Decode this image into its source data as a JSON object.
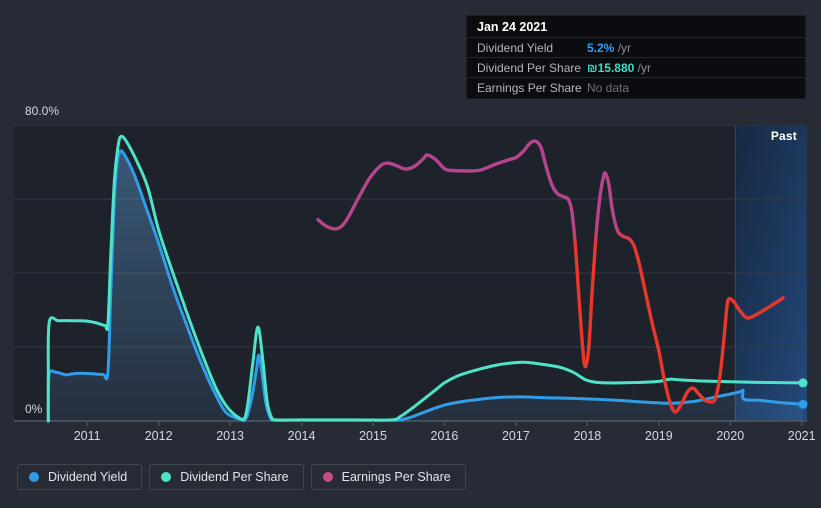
{
  "page": {
    "background": "#272b35"
  },
  "tooltip": {
    "date": "Jan 24 2021",
    "rows": [
      {
        "label": "Dividend Yield",
        "value": "5.2%",
        "suffix": " /yr",
        "color": "#2f9ff0",
        "no_data": false
      },
      {
        "label": "Dividend Per Share",
        "value": "₪15.880",
        "suffix": " /yr",
        "color": "#40ddc4",
        "no_data": false
      },
      {
        "label": "Earnings Per Share",
        "value": "No data",
        "suffix": "",
        "color": "#6d7379",
        "no_data": true
      }
    ]
  },
  "chart": {
    "y_top_label": "80.0%",
    "y_bottom_label": "0%",
    "past_label": "Past",
    "x_labels": [
      "2011",
      "2012",
      "2013",
      "2014",
      "2015",
      "2016",
      "2017",
      "2018",
      "2019",
      "2020",
      "2021"
    ]
  },
  "legend": [
    {
      "label": "Dividend Yield",
      "color": "#2f9de8"
    },
    {
      "label": "Dividend Per Share",
      "color": "#4ee3c8"
    },
    {
      "label": "Earnings Per Share",
      "color": "#c64a88"
    }
  ],
  "chart_data": {
    "type": "line",
    "title": "Dividend history with earnings per share",
    "ylabel": "%",
    "ylim": [
      0,
      80
    ],
    "grid_values": [
      80,
      60,
      40,
      20,
      0
    ],
    "x_ticks": [
      2011,
      2012,
      2013,
      2014,
      2015,
      2016,
      2017,
      2018,
      2019,
      2020,
      2021
    ],
    "x_range": [
      2010.0,
      2021.07
    ],
    "past_region": {
      "start_year": 2020.07,
      "end_year": 2021.07
    },
    "series": [
      {
        "name": "Dividend Yield",
        "color": "#2f9de8",
        "fill": true,
        "end_dot": true,
        "points": [
          [
            2010.455,
            0
          ],
          [
            2010.455,
            6
          ],
          [
            2010.47,
            12.9
          ],
          [
            2010.56,
            13.2
          ],
          [
            2010.7,
            12.5
          ],
          [
            2010.78,
            12.7
          ],
          [
            2010.9,
            12.9
          ],
          [
            2011.05,
            12.8
          ],
          [
            2011.22,
            12.6
          ],
          [
            2011.29,
            13.2
          ],
          [
            2011.33,
            35
          ],
          [
            2011.38,
            60
          ],
          [
            2011.42,
            70
          ],
          [
            2011.46,
            72.9
          ],
          [
            2011.52,
            72.0
          ],
          [
            2011.65,
            67
          ],
          [
            2011.8,
            59
          ],
          [
            2012.0,
            48
          ],
          [
            2012.2,
            36
          ],
          [
            2012.4,
            25.5
          ],
          [
            2012.6,
            15.5
          ],
          [
            2012.8,
            7
          ],
          [
            2012.95,
            2.2
          ],
          [
            2013.15,
            0.4
          ],
          [
            2013.22,
            0.6
          ],
          [
            2013.3,
            6
          ],
          [
            2013.37,
            14
          ],
          [
            2013.4,
            17.8
          ],
          [
            2013.44,
            14
          ],
          [
            2013.5,
            5
          ],
          [
            2013.56,
            1
          ],
          [
            2013.62,
            0.25
          ],
          [
            2013.9,
            0.25
          ],
          [
            2014.5,
            0.25
          ],
          [
            2015.3,
            0.25
          ],
          [
            2015.45,
            0.6
          ],
          [
            2015.6,
            1.5
          ],
          [
            2015.8,
            3
          ],
          [
            2016.0,
            4.3
          ],
          [
            2016.2,
            5.1
          ],
          [
            2016.5,
            5.9
          ],
          [
            2016.8,
            6.4
          ],
          [
            2017.1,
            6.5
          ],
          [
            2017.4,
            6.3
          ],
          [
            2017.8,
            6.1
          ],
          [
            2018.2,
            5.8
          ],
          [
            2018.5,
            5.5
          ],
          [
            2018.8,
            5.1
          ],
          [
            2019.0,
            4.9
          ],
          [
            2019.2,
            4.8
          ],
          [
            2019.5,
            5.3
          ],
          [
            2019.8,
            6.5
          ],
          [
            2020.0,
            7.3
          ],
          [
            2020.15,
            8.0
          ],
          [
            2020.18,
            8.2
          ],
          [
            2020.19,
            5.9
          ],
          [
            2020.4,
            5.6
          ],
          [
            2020.7,
            5.0
          ],
          [
            2021.02,
            4.5
          ]
        ]
      },
      {
        "name": "Dividend Per Share",
        "color": "#4ee3c8",
        "fill": false,
        "end_dot": true,
        "points": [
          [
            2010.455,
            0
          ],
          [
            2010.455,
            13
          ],
          [
            2010.47,
            26.8
          ],
          [
            2010.6,
            27.1
          ],
          [
            2010.8,
            27.1
          ],
          [
            2011.0,
            27.0
          ],
          [
            2011.15,
            26.4
          ],
          [
            2011.25,
            25.8
          ],
          [
            2011.29,
            26.3
          ],
          [
            2011.33,
            45
          ],
          [
            2011.38,
            65
          ],
          [
            2011.43,
            74
          ],
          [
            2011.47,
            76.9
          ],
          [
            2011.55,
            75.5
          ],
          [
            2011.7,
            70
          ],
          [
            2011.85,
            63
          ],
          [
            2012.0,
            51.6
          ],
          [
            2012.2,
            40
          ],
          [
            2012.4,
            29
          ],
          [
            2012.6,
            18.5
          ],
          [
            2012.8,
            9
          ],
          [
            2012.95,
            4
          ],
          [
            2013.1,
            1.2
          ],
          [
            2013.2,
            0.7
          ],
          [
            2013.25,
            5
          ],
          [
            2013.32,
            16
          ],
          [
            2013.39,
            25.4
          ],
          [
            2013.46,
            16
          ],
          [
            2013.52,
            5
          ],
          [
            2013.58,
            1
          ],
          [
            2013.64,
            0.3
          ],
          [
            2014.0,
            0.3
          ],
          [
            2014.7,
            0.3
          ],
          [
            2015.25,
            0.3
          ],
          [
            2015.38,
            1.2
          ],
          [
            2015.55,
            3.5
          ],
          [
            2015.75,
            6.5
          ],
          [
            2015.9,
            8.8
          ],
          [
            2016.0,
            10.3
          ],
          [
            2016.2,
            12.3
          ],
          [
            2016.45,
            13.8
          ],
          [
            2016.7,
            15.0
          ],
          [
            2016.9,
            15.6
          ],
          [
            2017.1,
            15.9
          ],
          [
            2017.3,
            15.5
          ],
          [
            2017.6,
            14.6
          ],
          [
            2017.8,
            13.2
          ],
          [
            2017.97,
            11.2
          ],
          [
            2018.1,
            10.5
          ],
          [
            2018.3,
            10.3
          ],
          [
            2018.7,
            10.4
          ],
          [
            2019.0,
            10.7
          ],
          [
            2019.15,
            11.3
          ],
          [
            2019.3,
            11.1
          ],
          [
            2019.6,
            10.8
          ],
          [
            2020.0,
            10.6
          ],
          [
            2020.5,
            10.4
          ],
          [
            2021.02,
            10.3
          ]
        ]
      },
      {
        "name": "Earnings Per Share",
        "color": "gradient-pink-red",
        "fill": false,
        "end_dot": false,
        "points": [
          [
            2014.23,
            54.4
          ],
          [
            2014.35,
            52.6
          ],
          [
            2014.5,
            52.0
          ],
          [
            2014.62,
            54.0
          ],
          [
            2014.78,
            59.7
          ],
          [
            2014.95,
            65.5
          ],
          [
            2015.1,
            68.9
          ],
          [
            2015.2,
            69.7
          ],
          [
            2015.33,
            69.0
          ],
          [
            2015.45,
            68.1
          ],
          [
            2015.58,
            68.8
          ],
          [
            2015.7,
            70.8
          ],
          [
            2015.76,
            71.9
          ],
          [
            2015.88,
            70.6
          ],
          [
            2016.0,
            68.2
          ],
          [
            2016.1,
            67.7
          ],
          [
            2016.3,
            67.6
          ],
          [
            2016.5,
            67.8
          ],
          [
            2016.7,
            69.3
          ],
          [
            2016.9,
            70.6
          ],
          [
            2017.0,
            71.2
          ],
          [
            2017.1,
            72.8
          ],
          [
            2017.17,
            74.5
          ],
          [
            2017.22,
            75.4
          ],
          [
            2017.28,
            75.6
          ],
          [
            2017.35,
            74.0
          ],
          [
            2017.42,
            69.0
          ],
          [
            2017.5,
            64.0
          ],
          [
            2017.58,
            61.5
          ],
          [
            2017.68,
            60.5
          ],
          [
            2017.73,
            60.0
          ],
          [
            2017.78,
            57.0
          ],
          [
            2017.83,
            48.0
          ],
          [
            2017.88,
            34.0
          ],
          [
            2017.93,
            21.0
          ],
          [
            2017.97,
            14.7
          ],
          [
            2018.02,
            20.0
          ],
          [
            2018.07,
            36.0
          ],
          [
            2018.13,
            52.0
          ],
          [
            2018.18,
            61.0
          ],
          [
            2018.22,
            65.5
          ],
          [
            2018.25,
            67.0
          ],
          [
            2018.3,
            64.0
          ],
          [
            2018.35,
            57.0
          ],
          [
            2018.42,
            51.5
          ],
          [
            2018.5,
            49.9
          ],
          [
            2018.58,
            49.3
          ],
          [
            2018.65,
            47.5
          ],
          [
            2018.72,
            43.0
          ],
          [
            2018.8,
            36.0
          ],
          [
            2018.9,
            27.0
          ],
          [
            2019.0,
            19.0
          ],
          [
            2019.08,
            11.0
          ],
          [
            2019.15,
            5.5
          ],
          [
            2019.22,
            2.5
          ],
          [
            2019.3,
            4.0
          ],
          [
            2019.4,
            7.8
          ],
          [
            2019.48,
            8.9
          ],
          [
            2019.56,
            7.3
          ],
          [
            2019.65,
            5.6
          ],
          [
            2019.72,
            5.2
          ],
          [
            2019.78,
            5.6
          ],
          [
            2019.84,
            10.0
          ],
          [
            2019.89,
            18.0
          ],
          [
            2019.93,
            26.0
          ],
          [
            2019.97,
            32.7
          ],
          [
            2020.05,
            32.2
          ],
          [
            2020.12,
            30.2
          ],
          [
            2020.23,
            27.9
          ],
          [
            2020.35,
            28.6
          ],
          [
            2020.5,
            30.3
          ],
          [
            2020.6,
            31.5
          ],
          [
            2020.74,
            33.3
          ]
        ]
      }
    ]
  }
}
